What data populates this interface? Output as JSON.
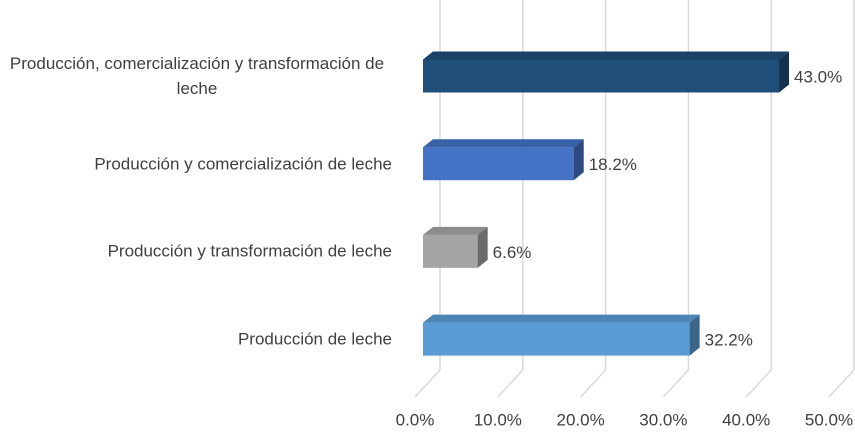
{
  "chart_data": {
    "type": "bar3d_horizontal",
    "categories": [
      "Producción, comercialización y transformación de leche",
      "Producción y comercialización de leche",
      "Producción y transformación de leche",
      "Producción de leche"
    ],
    "values": [
      43.0,
      18.2,
      6.6,
      32.2
    ],
    "value_labels": [
      "43.0%",
      "18.2%",
      "6.6%",
      "32.2%"
    ],
    "colors": [
      "#1f4e79",
      "#4472c4",
      "#a5a5a5",
      "#5b9bd5"
    ],
    "xlim": [
      0,
      50
    ],
    "xticks": [
      {
        "value": 0,
        "label": "0.0%"
      },
      {
        "value": 10,
        "label": "10.0%"
      },
      {
        "value": 20,
        "label": "20.0%"
      },
      {
        "value": 30,
        "label": "30.0%"
      },
      {
        "value": 40,
        "label": "40.0%"
      },
      {
        "value": 50,
        "label": "50.0%"
      }
    ],
    "grid": true
  }
}
